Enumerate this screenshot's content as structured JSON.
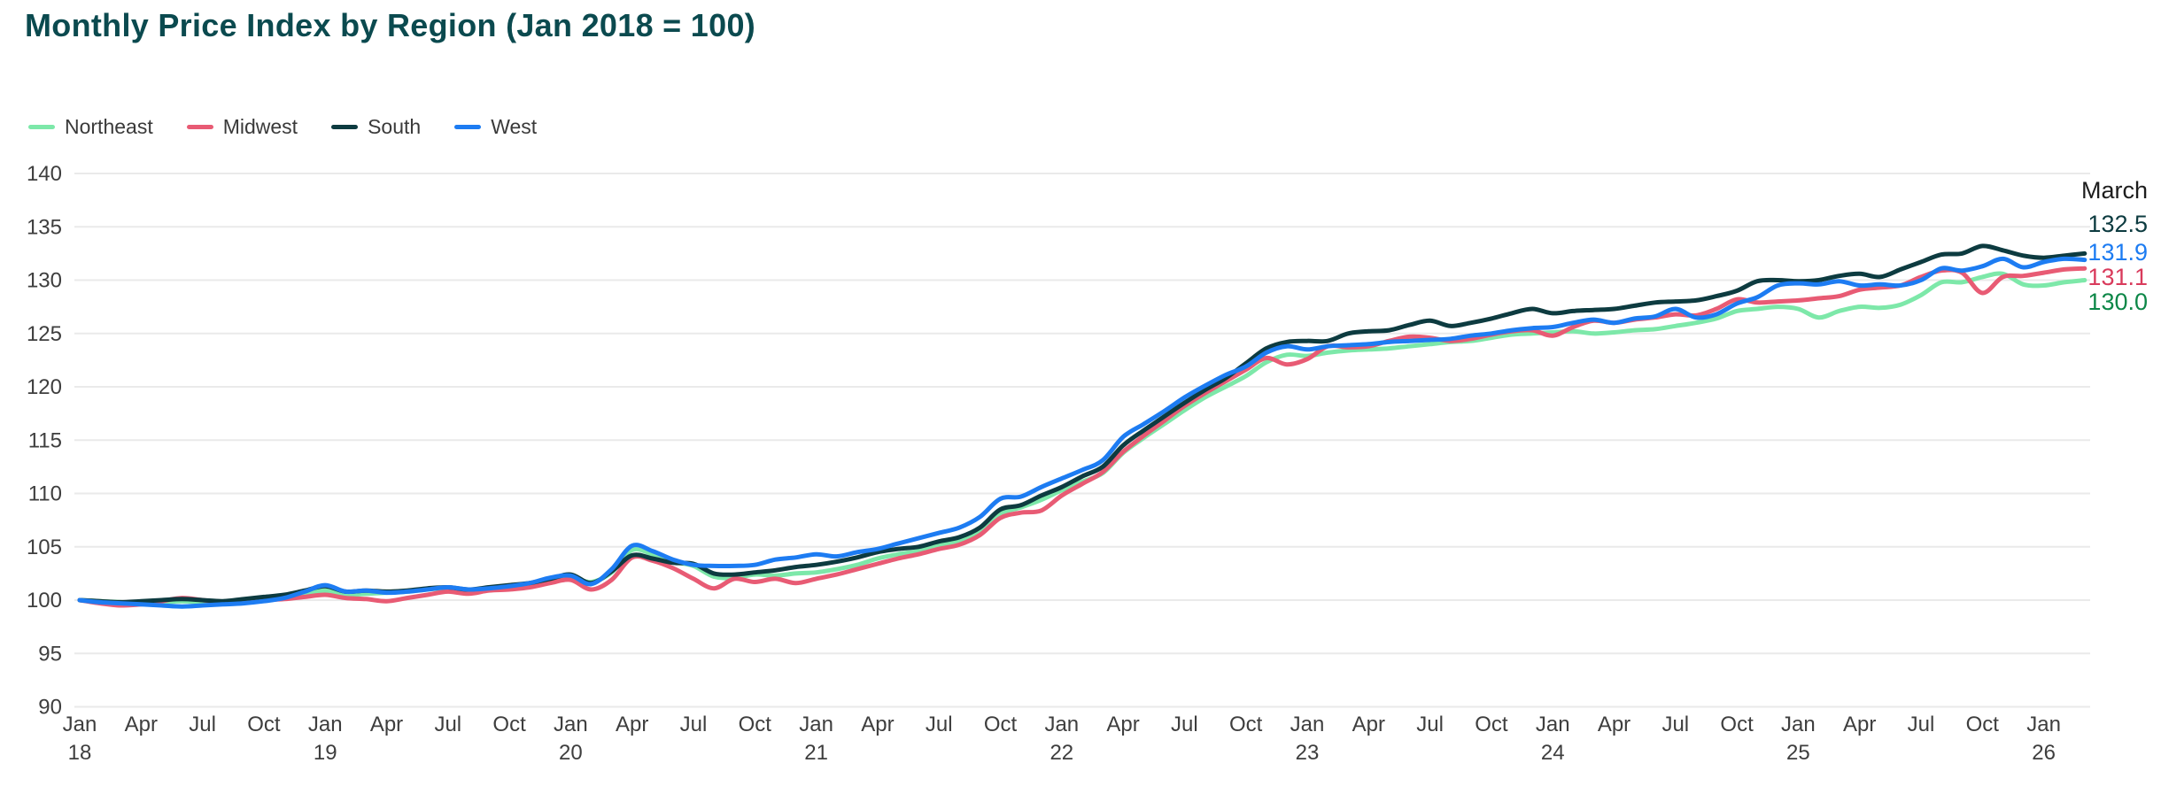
{
  "title": "Monthly Price Index by Region (Jan 2018 = 100)",
  "colors": {
    "title": "#0b4a4f",
    "axis_text": "#3e3e3e",
    "grid": "#eaeaea",
    "annotation_month": "#1d1d1d"
  },
  "legend": [
    {
      "label": "Northeast",
      "color": "#7de8a9"
    },
    {
      "label": "Midwest",
      "color": "#e85b74"
    },
    {
      "label": "South",
      "color": "#0d3b40"
    },
    {
      "label": "West",
      "color": "#1d7cf2"
    }
  ],
  "end_labels": {
    "month": "March",
    "items": [
      {
        "series": "South",
        "text": "132.5",
        "color": "#0d3b40"
      },
      {
        "series": "West",
        "text": "131.9",
        "color": "#1d7cf2"
      },
      {
        "series": "Midwest",
        "text": "131.1",
        "color": "#d93b5c"
      },
      {
        "series": "Northeast",
        "text": "130.0",
        "color": "#0d8748"
      }
    ]
  },
  "chart_data": {
    "type": "line",
    "title": "Monthly Price Index by Region (Jan 2018 = 100)",
    "frequency": "monthly",
    "x_start": "Jan 2018",
    "x_end": "Mar 2026",
    "ylim": [
      90,
      140
    ],
    "grid": true,
    "legend_position": "top-left",
    "y_ticks": [
      "140",
      "135",
      "130",
      "125",
      "120",
      "115",
      "110",
      "105",
      "100",
      "95",
      "90"
    ],
    "x_ticks": [
      {
        "label": "Jan",
        "year": "18"
      },
      {
        "label": "Apr"
      },
      {
        "label": "Jul"
      },
      {
        "label": "Oct"
      },
      {
        "label": "Jan",
        "year": "19"
      },
      {
        "label": "Apr"
      },
      {
        "label": "Jul"
      },
      {
        "label": "Oct"
      },
      {
        "label": "Jan",
        "year": "20"
      },
      {
        "label": "Apr"
      },
      {
        "label": "Jul"
      },
      {
        "label": "Oct"
      },
      {
        "label": "Jan",
        "year": "21"
      },
      {
        "label": "Apr"
      },
      {
        "label": "Jul"
      },
      {
        "label": "Oct"
      },
      {
        "label": "Jan",
        "year": "22"
      },
      {
        "label": "Apr"
      },
      {
        "label": "Jul"
      },
      {
        "label": "Oct"
      },
      {
        "label": "Jan",
        "year": "23"
      },
      {
        "label": "Apr"
      },
      {
        "label": "Jul"
      },
      {
        "label": "Oct"
      },
      {
        "label": "Jan",
        "year": "24"
      },
      {
        "label": "Apr"
      },
      {
        "label": "Jul"
      },
      {
        "label": "Oct"
      },
      {
        "label": "Jan",
        "year": "25"
      },
      {
        "label": "Apr"
      },
      {
        "label": "Jul"
      },
      {
        "label": "Oct"
      },
      {
        "label": "Jan",
        "year": "26"
      }
    ],
    "series": [
      {
        "name": "Northeast",
        "color": "#7de8a9",
        "values": [
          100.0,
          99.9,
          99.8,
          99.7,
          99.8,
          99.9,
          99.8,
          99.7,
          99.8,
          100.0,
          100.3,
          100.6,
          100.9,
          100.5,
          100.6,
          100.7,
          100.8,
          101.0,
          101.1,
          100.9,
          101.0,
          101.2,
          101.4,
          101.8,
          102.1,
          101.7,
          102.6,
          104.7,
          104.3,
          103.6,
          103.2,
          102.2,
          102.1,
          102.4,
          102.3,
          102.5,
          102.6,
          102.9,
          103.3,
          103.9,
          104.3,
          104.6,
          105.1,
          105.6,
          106.4,
          108.1,
          108.7,
          109.4,
          110.3,
          111.1,
          111.9,
          113.8,
          115.2,
          116.5,
          117.8,
          119.0,
          120.0,
          121.0,
          122.3,
          123.0,
          122.9,
          123.2,
          123.4,
          123.5,
          123.6,
          123.8,
          124.0,
          124.2,
          124.3,
          124.6,
          124.9,
          125.0,
          125.1,
          125.2,
          125.0,
          125.1,
          125.3,
          125.4,
          125.7,
          126.0,
          126.4,
          127.1,
          127.3,
          127.5,
          127.3,
          126.5,
          127.1,
          127.5,
          127.4,
          127.7,
          128.6,
          129.8,
          129.8,
          130.3,
          130.6,
          129.6,
          129.5,
          129.8,
          130.0
        ]
      },
      {
        "name": "Midwest",
        "color": "#e85b74",
        "values": [
          100.0,
          99.7,
          99.5,
          99.6,
          99.9,
          100.2,
          100.0,
          99.8,
          99.9,
          100.0,
          100.1,
          100.3,
          100.5,
          100.2,
          100.1,
          99.9,
          100.2,
          100.5,
          100.8,
          100.6,
          100.9,
          101.0,
          101.2,
          101.6,
          101.9,
          101.0,
          101.9,
          104.0,
          103.7,
          103.0,
          102.0,
          101.1,
          102.0,
          101.7,
          102.0,
          101.6,
          102.0,
          102.4,
          102.9,
          103.4,
          103.9,
          104.3,
          104.8,
          105.2,
          106.1,
          107.7,
          108.2,
          108.4,
          109.8,
          110.9,
          112.0,
          113.9,
          115.4,
          116.8,
          118.2,
          119.4,
          120.5,
          121.6,
          122.7,
          122.1,
          122.6,
          123.8,
          123.7,
          123.8,
          124.3,
          124.7,
          124.6,
          124.3,
          124.5,
          124.9,
          125.2,
          125.3,
          124.8,
          125.6,
          126.2,
          126.0,
          126.3,
          126.5,
          126.8,
          126.7,
          127.3,
          128.2,
          127.9,
          128.0,
          128.1,
          128.3,
          128.5,
          129.1,
          129.3,
          129.5,
          130.3,
          130.9,
          130.7,
          128.8,
          130.3,
          130.4,
          130.7,
          131.0,
          131.1
        ]
      },
      {
        "name": "South",
        "color": "#0d3b40",
        "values": [
          100.0,
          99.9,
          99.8,
          99.9,
          100.0,
          100.1,
          100.0,
          99.9,
          100.1,
          100.3,
          100.5,
          100.9,
          101.3,
          100.8,
          100.9,
          100.8,
          100.9,
          101.1,
          101.2,
          101.0,
          101.2,
          101.4,
          101.6,
          102.0,
          102.4,
          101.6,
          102.7,
          104.2,
          103.9,
          103.5,
          103.4,
          102.5,
          102.4,
          102.6,
          102.8,
          103.1,
          103.3,
          103.6,
          104.0,
          104.5,
          104.8,
          105.0,
          105.5,
          105.9,
          106.8,
          108.5,
          108.9,
          109.8,
          110.6,
          111.6,
          112.5,
          114.5,
          115.9,
          117.2,
          118.5,
          119.7,
          120.8,
          122.2,
          123.6,
          124.2,
          124.3,
          124.3,
          125.0,
          125.2,
          125.3,
          125.8,
          126.2,
          125.7,
          126.0,
          126.4,
          126.9,
          127.3,
          126.9,
          127.1,
          127.2,
          127.3,
          127.6,
          127.9,
          128.0,
          128.1,
          128.5,
          129.0,
          129.9,
          130.0,
          129.9,
          130.0,
          130.4,
          130.6,
          130.3,
          131.0,
          131.7,
          132.4,
          132.5,
          133.2,
          132.8,
          132.3,
          132.1,
          132.3,
          132.5
        ]
      },
      {
        "name": "West",
        "color": "#1d7cf2",
        "values": [
          100.0,
          99.8,
          99.7,
          99.6,
          99.5,
          99.4,
          99.5,
          99.6,
          99.7,
          99.9,
          100.2,
          100.8,
          101.4,
          100.8,
          100.9,
          100.7,
          100.8,
          101.0,
          101.2,
          101.0,
          101.1,
          101.3,
          101.6,
          102.1,
          102.3,
          101.5,
          102.9,
          105.1,
          104.6,
          103.8,
          103.3,
          103.2,
          103.2,
          103.3,
          103.8,
          104.0,
          104.3,
          104.1,
          104.5,
          104.8,
          105.3,
          105.8,
          106.3,
          106.8,
          107.8,
          109.5,
          109.7,
          110.6,
          111.4,
          112.2,
          113.1,
          115.3,
          116.5,
          117.7,
          119.0,
          120.1,
          121.1,
          121.9,
          123.2,
          123.8,
          123.5,
          123.8,
          123.9,
          124.0,
          124.2,
          124.3,
          124.4,
          124.5,
          124.8,
          125.0,
          125.3,
          125.5,
          125.6,
          126.0,
          126.3,
          126.0,
          126.4,
          126.6,
          127.3,
          126.5,
          126.8,
          127.8,
          128.4,
          129.5,
          129.7,
          129.6,
          129.9,
          129.5,
          129.6,
          129.5,
          130.0,
          131.1,
          130.9,
          131.3,
          132.0,
          131.2,
          131.7,
          132.0,
          131.9
        ]
      }
    ]
  }
}
